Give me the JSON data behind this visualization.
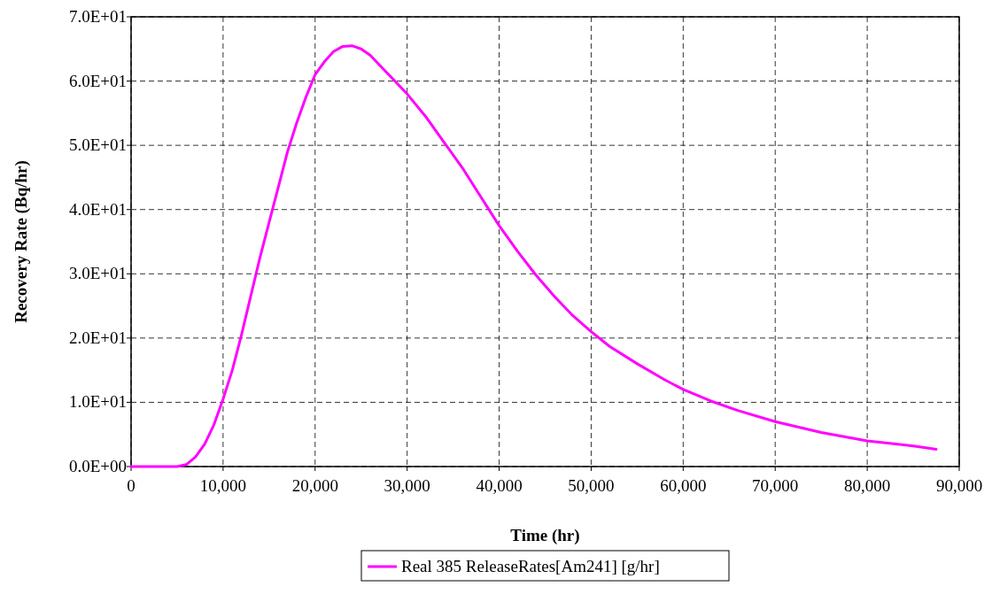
{
  "chart_data": {
    "type": "line",
    "xlabel": "Time (hr)",
    "ylabel": "Recovery Rate (Bq/hr)",
    "series": [
      {
        "name": "Real 385 ReleaseRates[Am241] [g/hr]",
        "color": "#ff00ff",
        "x": [
          0,
          2000,
          4000,
          5000,
          6000,
          7000,
          8000,
          9000,
          10000,
          11000,
          12000,
          13000,
          14000,
          15000,
          16000,
          17000,
          18000,
          19000,
          20000,
          21000,
          22000,
          23000,
          24000,
          25000,
          26000,
          27000,
          28000,
          29000,
          30000,
          32000,
          34000,
          36000,
          38000,
          40000,
          42000,
          44000,
          46000,
          48000,
          50000,
          52000,
          55000,
          58000,
          60000,
          63000,
          66000,
          70000,
          75000,
          80000,
          85000,
          87500
        ],
        "values": [
          0,
          0,
          0,
          0,
          0.3,
          1.5,
          3.5,
          6.5,
          10.5,
          15,
          20.5,
          26.5,
          32.5,
          38,
          43.5,
          49,
          53.5,
          57.5,
          61,
          63,
          64.6,
          65.4,
          65.5,
          65,
          64,
          62.5,
          61,
          59.5,
          58,
          54.5,
          50.5,
          46.5,
          42,
          37.5,
          33.5,
          29.8,
          26.5,
          23.5,
          21,
          18.7,
          16,
          13.5,
          12,
          10.2,
          8.7,
          7,
          5.3,
          4,
          3.2,
          2.7
        ]
      }
    ],
    "xlim": [
      0,
      90000
    ],
    "xticks": [
      0,
      {
        "value": 10000,
        "label": "10,000"
      },
      {
        "value": 20000,
        "label": "20,000"
      },
      {
        "value": 30000,
        "label": "30,000"
      },
      {
        "value": 40000,
        "label": "40,000"
      },
      {
        "value": 50000,
        "label": "50,000"
      },
      {
        "value": 60000,
        "label": "60,000"
      },
      {
        "value": 70000,
        "label": "70,000"
      },
      {
        "value": 80000,
        "label": "80,000"
      },
      {
        "value": 90000,
        "label": "90,000"
      }
    ],
    "ylim": [
      0,
      70
    ],
    "yticks": [
      {
        "value": 0,
        "label": "0.0E+00"
      },
      {
        "value": 10,
        "label": "1.0E+01"
      },
      {
        "value": 20,
        "label": "2.0E+01"
      },
      {
        "value": 30,
        "label": "3.0E+01"
      },
      {
        "value": 40,
        "label": "4.0E+01"
      },
      {
        "value": 50,
        "label": "5.0E+01"
      },
      {
        "value": 60,
        "label": "6.0E+01"
      },
      {
        "value": 70,
        "label": "7.0E+01"
      }
    ],
    "grid": true,
    "legend": "bottom",
    "marker": "none",
    "line_style": "solid"
  }
}
